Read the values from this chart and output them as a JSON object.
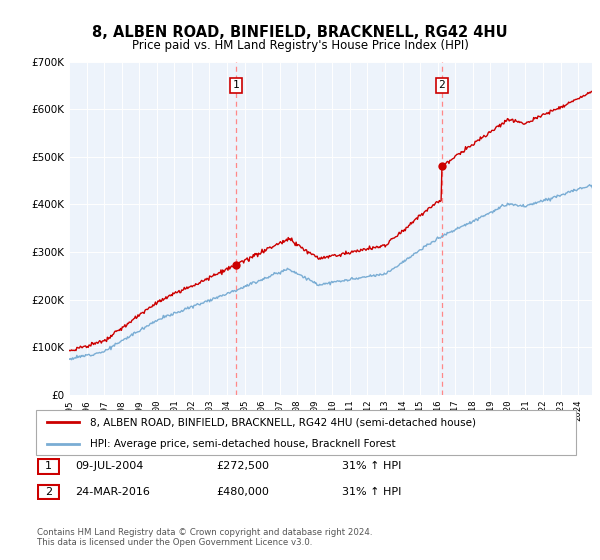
{
  "title": "8, ALBEN ROAD, BINFIELD, BRACKNELL, RG42 4HU",
  "subtitle": "Price paid vs. HM Land Registry's House Price Index (HPI)",
  "legend_line1": "8, ALBEN ROAD, BINFIELD, BRACKNELL, RG42 4HU (semi-detached house)",
  "legend_line2": "HPI: Average price, semi-detached house, Bracknell Forest",
  "transaction1_label": "1",
  "transaction1_date": "09-JUL-2004",
  "transaction1_price": "£272,500",
  "transaction1_hpi": "31% ↑ HPI",
  "transaction2_label": "2",
  "transaction2_date": "24-MAR-2016",
  "transaction2_price": "£480,000",
  "transaction2_hpi": "31% ↑ HPI",
  "footnote": "Contains HM Land Registry data © Crown copyright and database right 2024.\nThis data is licensed under the Open Government Licence v3.0.",
  "ylim": [
    0,
    700000
  ],
  "yticks": [
    0,
    100000,
    200000,
    300000,
    400000,
    500000,
    600000,
    700000
  ],
  "bg_color": "#EDF3FB",
  "red_color": "#CC0000",
  "blue_color": "#7AADD4",
  "dashed_line_color": "#FF8888",
  "transaction1_x": 2004.52,
  "transaction1_y": 272500,
  "transaction2_x": 2016.23,
  "transaction2_y": 480000,
  "xmin": 1995,
  "xmax": 2024.8
}
